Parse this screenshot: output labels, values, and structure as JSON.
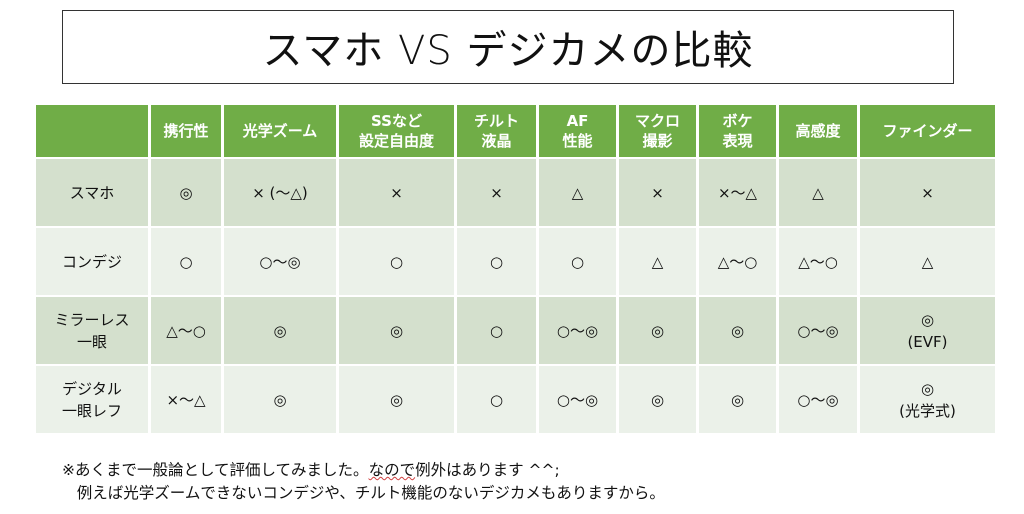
{
  "title": "スマホ VS デジカメの比較",
  "table": {
    "headers": [
      {
        "l1": "",
        "l2": ""
      },
      {
        "l1": "携行性",
        "l2": ""
      },
      {
        "l1": "光学ズーム",
        "l2": ""
      },
      {
        "l1": "SSなど",
        "l2": "設定自由度"
      },
      {
        "l1": "チルト",
        "l2": "液晶"
      },
      {
        "l1": "AF",
        "l2": "性能"
      },
      {
        "l1": "マクロ",
        "l2": "撮影"
      },
      {
        "l1": "ボケ",
        "l2": "表現"
      },
      {
        "l1": "高感度",
        "l2": ""
      },
      {
        "l1": "ファインダー",
        "l2": ""
      }
    ],
    "rows": [
      {
        "name1": "スマホ",
        "name2": "",
        "cells": [
          {
            "v": "◎"
          },
          {
            "v": "× (〜△)"
          },
          {
            "v": "×"
          },
          {
            "v": "×"
          },
          {
            "v": "△"
          },
          {
            "v": "×"
          },
          {
            "v": "×〜△"
          },
          {
            "v": "△"
          },
          {
            "v": "×"
          }
        ]
      },
      {
        "name1": "コンデジ",
        "name2": "",
        "cells": [
          {
            "v": "○"
          },
          {
            "v": "○〜◎"
          },
          {
            "v": "○"
          },
          {
            "v": "○"
          },
          {
            "v": "○"
          },
          {
            "v": "△"
          },
          {
            "v": "△〜○"
          },
          {
            "v": "△〜○"
          },
          {
            "v": "△"
          }
        ]
      },
      {
        "name1": "ミラーレス",
        "name2": "一眼",
        "cells": [
          {
            "v": "△〜○"
          },
          {
            "v": "◎"
          },
          {
            "v": "◎"
          },
          {
            "v": "○"
          },
          {
            "v": "○〜◎"
          },
          {
            "v": "◎"
          },
          {
            "v": "◎"
          },
          {
            "v": "○〜◎"
          },
          {
            "v": "◎",
            "sub": "(EVF)"
          }
        ]
      },
      {
        "name1": "デジタル",
        "name2": "一眼レフ",
        "cells": [
          {
            "v": "×〜△"
          },
          {
            "v": "◎"
          },
          {
            "v": "◎"
          },
          {
            "v": "○"
          },
          {
            "v": "○〜◎"
          },
          {
            "v": "◎"
          },
          {
            "v": "◎"
          },
          {
            "v": "○〜◎"
          },
          {
            "v": "◎",
            "sub": "(光学式)"
          }
        ]
      }
    ]
  },
  "note": {
    "line1_a": "※あくまで一般論として評価してみました。",
    "line1_b": "なので",
    "line1_c": "例外はあります ^^;",
    "line2": "例えば光学ズームできないコンデジや、チルト機能のないデジカメもありますから。"
  },
  "colors": {
    "header_bg": "#70ad47",
    "row_dark": "#d4e0cd",
    "row_light": "#ebf1e9"
  }
}
